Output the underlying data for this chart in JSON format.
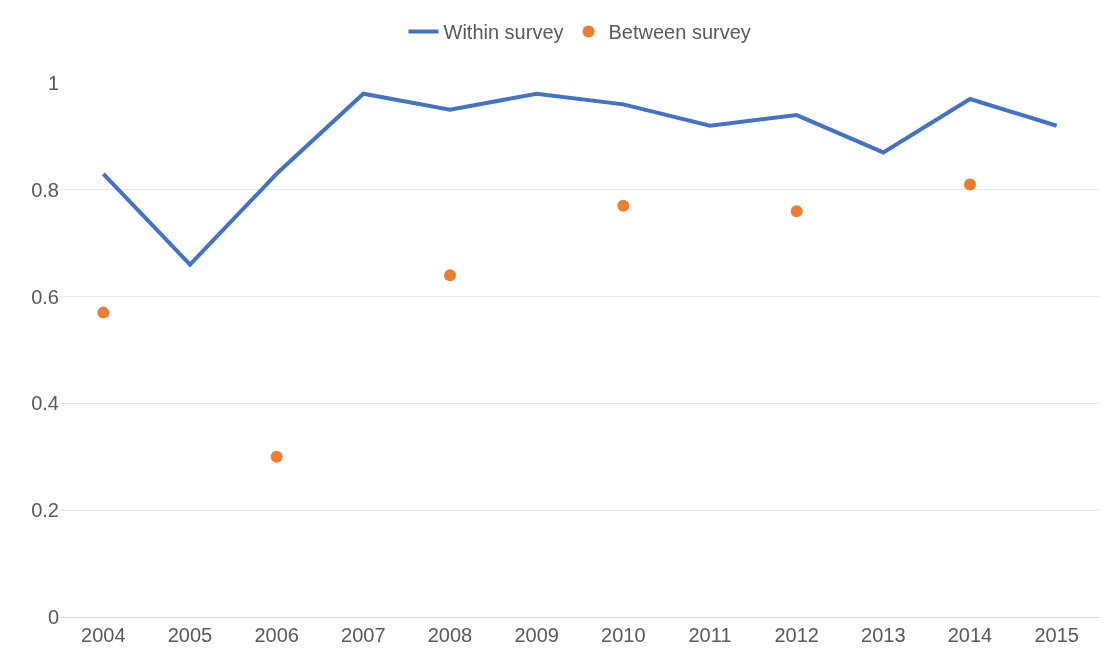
{
  "chart_data": {
    "type": "line",
    "categories": [
      "2004",
      "2005",
      "2006",
      "2007",
      "2008",
      "2009",
      "2010",
      "2011",
      "2012",
      "2013",
      "2014",
      "2015"
    ],
    "series": [
      {
        "name": "Within survey",
        "color": "#4472c4",
        "marker": "none",
        "values": [
          0.83,
          0.66,
          0.83,
          0.98,
          0.95,
          0.98,
          0.96,
          0.92,
          0.94,
          0.87,
          0.97,
          0.92
        ]
      },
      {
        "name": "Between survey",
        "type": "scatter",
        "color": "#ed7d31",
        "marker": "circle",
        "values": [
          0.57,
          null,
          0.3,
          null,
          0.64,
          null,
          0.77,
          null,
          0.76,
          null,
          0.81,
          null
        ]
      }
    ],
    "ylim": [
      0,
      1
    ],
    "yticks": [
      0,
      0.2,
      0.4,
      0.6,
      0.8,
      1
    ],
    "grid": "y",
    "legend": "top"
  }
}
